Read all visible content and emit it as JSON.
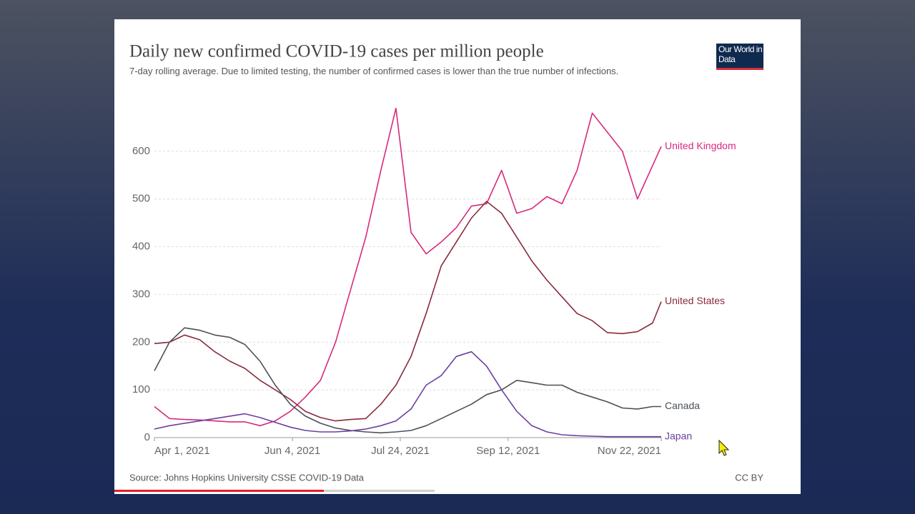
{
  "chart_data": {
    "type": "line",
    "title": "Daily new confirmed COVID-19 cases per million people",
    "subtitle": "7-day rolling average. Due to limited testing, the number of confirmed cases is lower than the true number of infections.",
    "logo": "Our World in Data",
    "source": "Source: Johns Hopkins University CSSE COVID-19 Data",
    "license": "CC BY",
    "x": [
      "2021-04-01",
      "2021-04-08",
      "2021-04-15",
      "2021-04-22",
      "2021-04-29",
      "2021-05-06",
      "2021-05-13",
      "2021-05-20",
      "2021-05-27",
      "2021-06-03",
      "2021-06-10",
      "2021-06-17",
      "2021-06-24",
      "2021-07-01",
      "2021-07-08",
      "2021-07-15",
      "2021-07-22",
      "2021-07-29",
      "2021-08-05",
      "2021-08-12",
      "2021-08-19",
      "2021-08-26",
      "2021-09-02",
      "2021-09-09",
      "2021-09-16",
      "2021-09-23",
      "2021-09-30",
      "2021-10-07",
      "2021-10-14",
      "2021-10-21",
      "2021-10-28",
      "2021-11-04",
      "2021-11-11",
      "2021-11-18",
      "2021-11-22"
    ],
    "series": [
      {
        "name": "United Kingdom",
        "color": "#d8297c",
        "values": [
          65,
          40,
          38,
          37,
          35,
          33,
          33,
          25,
          35,
          55,
          85,
          120,
          200,
          310,
          420,
          560,
          690,
          430,
          385,
          410,
          440,
          485,
          490,
          560,
          470,
          480,
          505,
          490,
          560,
          680,
          640,
          600,
          500,
          570,
          610
        ]
      },
      {
        "name": "United States",
        "color": "#8a2a3b",
        "values": [
          197,
          200,
          215,
          205,
          180,
          160,
          145,
          120,
          100,
          80,
          55,
          42,
          35,
          38,
          40,
          70,
          110,
          170,
          260,
          360,
          410,
          460,
          495,
          470,
          420,
          370,
          330,
          295,
          260,
          245,
          220,
          218,
          222,
          240,
          285
        ]
      },
      {
        "name": "Canada",
        "color": "#4a5159",
        "values": [
          140,
          200,
          230,
          225,
          215,
          210,
          195,
          160,
          110,
          70,
          45,
          30,
          20,
          15,
          12,
          10,
          12,
          15,
          25,
          40,
          55,
          70,
          90,
          100,
          120,
          115,
          110,
          110,
          95,
          85,
          75,
          62,
          60,
          65,
          65
        ]
      },
      {
        "name": "Japan",
        "color": "#6b3fa0",
        "values": [
          18,
          25,
          30,
          35,
          40,
          45,
          50,
          42,
          32,
          22,
          15,
          12,
          12,
          14,
          18,
          25,
          35,
          60,
          110,
          130,
          170,
          180,
          150,
          100,
          55,
          25,
          12,
          6,
          4,
          3,
          2,
          2,
          2,
          2,
          2
        ]
      }
    ],
    "xlim": [
      "2021-04-01",
      "2021-11-22"
    ],
    "xticks": [
      {
        "value": "2021-04-01",
        "label": "Apr 1, 2021"
      },
      {
        "value": "2021-06-04",
        "label": "Jun 4, 2021"
      },
      {
        "value": "2021-07-24",
        "label": "Jul 24, 2021"
      },
      {
        "value": "2021-09-12",
        "label": "Sep 12, 2021"
      },
      {
        "value": "2021-11-22",
        "label": "Nov 22, 2021"
      }
    ],
    "ylim": [
      0,
      700
    ],
    "yticks": [
      0,
      100,
      200,
      300,
      400,
      500,
      600
    ],
    "grid": true
  }
}
